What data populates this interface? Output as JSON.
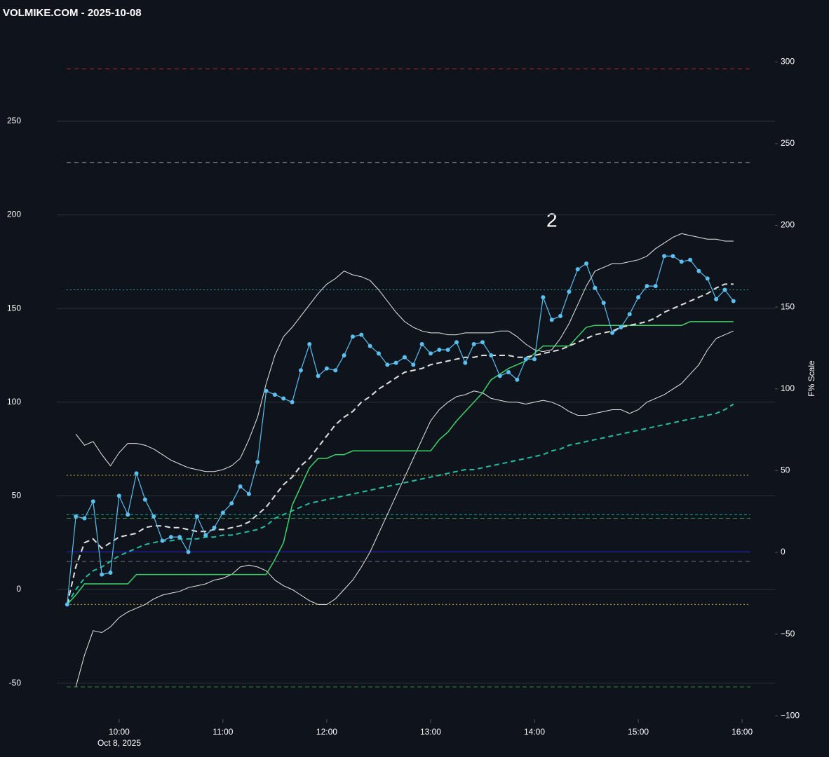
{
  "chart_data": {
    "type": "line",
    "title": "VOLMIKE.COM  - 2025-10-08",
    "y2_label": "F% Scale",
    "x_date_label": "Oct 8, 2025",
    "annotation": "2",
    "x": [
      "09:30",
      "09:35",
      "09:40",
      "09:45",
      "09:50",
      "09:55",
      "10:00",
      "10:05",
      "10:10",
      "10:15",
      "10:20",
      "10:25",
      "10:30",
      "10:35",
      "10:40",
      "10:45",
      "10:50",
      "10:55",
      "11:00",
      "11:05",
      "11:10",
      "11:15",
      "11:20",
      "11:25",
      "11:30",
      "11:35",
      "11:40",
      "11:45",
      "11:50",
      "11:55",
      "12:00",
      "12:05",
      "12:10",
      "12:15",
      "12:20",
      "12:25",
      "12:30",
      "12:35",
      "12:40",
      "12:45",
      "12:50",
      "12:55",
      "13:00",
      "13:05",
      "13:10",
      "13:15",
      "13:20",
      "13:25",
      "13:30",
      "13:35",
      "13:40",
      "13:45",
      "13:50",
      "13:55",
      "14:00",
      "14:05",
      "14:10",
      "14:15",
      "14:20",
      "14:25",
      "14:30",
      "14:35",
      "14:40",
      "14:45",
      "14:50",
      "14:55",
      "15:00",
      "15:05",
      "15:10",
      "15:15",
      "15:20",
      "15:25",
      "15:30",
      "15:35",
      "15:40",
      "15:45",
      "15:50",
      "15:55"
    ],
    "xlim": [
      "09:24",
      "16:19"
    ],
    "xticks": [
      "10:00",
      "11:00",
      "12:00",
      "13:00",
      "14:00",
      "15:00",
      "16:00"
    ],
    "ylim": [
      -59.5,
      303.5
    ],
    "yticks": [
      -50,
      0,
      50,
      100,
      150,
      200,
      250
    ],
    "y2lim": [
      -90.9,
      325
    ],
    "y2ticks": [
      {
        "value": -100,
        "label": "−100"
      },
      {
        "value": -50,
        "label": "−50"
      },
      0,
      50,
      100,
      150,
      200,
      250,
      300
    ],
    "grid": true,
    "reference_lines": [
      {
        "value": 278,
        "color": "#b22222",
        "dash": "6,5"
      },
      {
        "value": 228,
        "color": "#9a9a9a",
        "dash": "6,5"
      },
      {
        "value": 160,
        "color": "#1fa6a0",
        "dash": "2,3"
      },
      {
        "value": 61,
        "color": "#c8a82a",
        "dash": "2,3"
      },
      {
        "value": 40,
        "color": "#1fa6a0",
        "dash": "4,3"
      },
      {
        "value": 38,
        "color": "#2e8b3e",
        "dash": "6,4"
      },
      {
        "value": 20,
        "color": "#2a2ad0",
        "dash": "none"
      },
      {
        "value": 15,
        "color": "#777777",
        "dash": "6,5"
      },
      {
        "value": -8,
        "color": "#c8a82a",
        "dash": "2,3"
      },
      {
        "value": -52,
        "color": "#2e8b3e",
        "dash": "6,4"
      }
    ],
    "series": [
      {
        "color": "#e8e8e8",
        "dash": "none",
        "width": 1,
        "markers": false,
        "values": [
          null,
          83,
          77,
          79,
          72,
          66,
          73,
          78,
          78,
          77,
          75,
          72,
          69,
          67,
          65,
          64,
          63,
          63,
          64,
          66,
          70,
          80,
          92,
          110,
          125,
          135,
          140,
          146,
          152,
          158,
          163,
          166,
          170,
          168,
          167,
          165,
          160,
          154,
          148,
          143,
          140,
          138,
          137,
          137,
          136,
          136,
          137,
          137,
          137,
          137,
          138,
          138,
          135,
          131,
          128,
          127,
          128,
          134,
          142,
          152,
          162,
          170,
          172,
          174,
          174,
          175,
          176,
          178,
          182,
          185,
          188,
          190,
          189,
          188,
          187,
          187,
          186,
          186
        ]
      },
      {
        "color": "#e8e8e8",
        "dash": "none",
        "width": 1,
        "markers": false,
        "values": [
          null,
          -52,
          -35,
          -22,
          -23,
          -20,
          -15,
          -12,
          -10,
          -8,
          -5,
          -3,
          -2,
          -1,
          1,
          2,
          3,
          5,
          6,
          8,
          12,
          13,
          12,
          10,
          5,
          2,
          0,
          -3,
          -6,
          -8,
          -8,
          -5,
          0,
          5,
          12,
          20,
          30,
          40,
          50,
          60,
          70,
          80,
          90,
          96,
          100,
          103,
          104,
          106,
          105,
          102,
          101,
          100,
          100,
          99,
          100,
          101,
          100,
          98,
          95,
          93,
          93,
          94,
          95,
          96,
          96,
          94,
          96,
          100,
          102,
          104,
          107,
          110,
          115,
          120,
          128,
          134,
          136,
          138
        ]
      },
      {
        "color": "#20c0a0",
        "dash": "7,5",
        "width": 2,
        "markers": false,
        "values": [
          -8,
          0,
          6,
          10,
          12,
          15,
          18,
          20,
          22,
          24,
          25,
          26,
          26,
          27,
          27,
          27,
          28,
          28,
          29,
          29,
          30,
          31,
          32,
          34,
          38,
          40,
          42,
          44,
          46,
          47,
          48,
          49,
          50,
          51,
          52,
          53,
          54,
          55,
          56,
          57,
          58,
          59,
          60,
          61,
          62,
          63,
          64,
          64,
          65,
          66,
          67,
          68,
          69,
          70,
          71,
          72,
          74,
          75,
          77,
          78,
          79,
          80,
          81,
          82,
          83,
          84,
          85,
          86,
          87,
          88,
          89,
          90,
          91,
          92,
          93,
          94,
          96,
          99
        ]
      },
      {
        "color": "#3ed36a",
        "dash": "none",
        "width": 1.5,
        "markers": false,
        "values": [
          -8,
          -3,
          3,
          3,
          3,
          3,
          3,
          3,
          8,
          8,
          8,
          8,
          8,
          8,
          8,
          8,
          8,
          8,
          8,
          8,
          8,
          8,
          8,
          8,
          16,
          25,
          45,
          55,
          65,
          70,
          70,
          72,
          72,
          74,
          74,
          74,
          74,
          74,
          74,
          74,
          74,
          74,
          74,
          80,
          84,
          90,
          95,
          100,
          105,
          112,
          115,
          118,
          120,
          122,
          126,
          130,
          130,
          130,
          130,
          135,
          140,
          141,
          141,
          141,
          141,
          141,
          141,
          141,
          141,
          141,
          141,
          141,
          143,
          143,
          143,
          143,
          143,
          143
        ]
      },
      {
        "color": "#e0e0e0",
        "dash": "8,5",
        "width": 2,
        "markers": false,
        "values": [
          -8,
          12,
          25,
          27,
          22,
          25,
          28,
          29,
          30,
          33,
          34,
          34,
          33,
          33,
          32,
          31,
          31,
          32,
          32,
          33,
          34,
          36,
          40,
          44,
          50,
          56,
          60,
          66,
          70,
          76,
          82,
          88,
          92,
          95,
          100,
          103,
          107,
          110,
          113,
          116,
          117,
          118,
          120,
          121,
          122,
          123,
          124,
          124,
          125,
          125,
          125,
          125,
          124,
          124,
          125,
          126,
          127,
          128,
          130,
          132,
          134,
          136,
          137,
          138,
          140,
          141,
          142,
          143,
          145,
          148,
          150,
          152,
          154,
          156,
          158,
          161,
          163,
          163
        ]
      },
      {
        "color": "#5bc0f0",
        "dash": "none",
        "width": 1.2,
        "markers": true,
        "values": [
          -8,
          39,
          38,
          47,
          8,
          9,
          50,
          40,
          62,
          48,
          39,
          26,
          28,
          28,
          20,
          39,
          29,
          33,
          41,
          46,
          55,
          51,
          68,
          106,
          104,
          102,
          100,
          117,
          131,
          114,
          118,
          117,
          125,
          135,
          136,
          130,
          126,
          120,
          121,
          124,
          120,
          131,
          126,
          128,
          128,
          132,
          121,
          131,
          132,
          125,
          114,
          116,
          112,
          123,
          123,
          156,
          144,
          146,
          159,
          171,
          174,
          161,
          153,
          137,
          140,
          147,
          156,
          162,
          162,
          178,
          178,
          175,
          176,
          170,
          166,
          155,
          160,
          154
        ]
      }
    ]
  }
}
